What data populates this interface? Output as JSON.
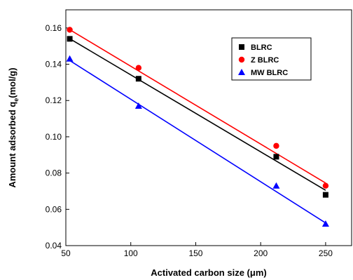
{
  "chart_data": {
    "type": "scatter",
    "title": "",
    "xlabel": "Activated carbon size (μm)",
    "ylabel_main": "Amount adsorbed q",
    "ylabel_sub": "e",
    "ylabel_unit": "(mol/g)",
    "xlim": [
      50,
      270
    ],
    "ylim": [
      0.04,
      0.17
    ],
    "x_ticks": [
      50,
      100,
      150,
      200,
      250
    ],
    "x_tick_labels": [
      "50",
      "100",
      "150",
      "200",
      "250"
    ],
    "y_ticks": [
      0.04,
      0.06,
      0.08,
      0.1,
      0.12,
      0.14,
      0.16
    ],
    "y_tick_labels": [
      "0.04",
      "0.06",
      "0.08",
      "0.10",
      "0.12",
      "0.14",
      "0.16"
    ],
    "grid": false,
    "legend_position": "top-right",
    "series": [
      {
        "name": "BLRC",
        "marker": "square",
        "color": "#000000",
        "points": [
          [
            53,
            0.154
          ],
          [
            106,
            0.132
          ],
          [
            212,
            0.089
          ],
          [
            250,
            0.068
          ]
        ],
        "fit": [
          [
            52,
            0.1545
          ],
          [
            250,
            0.0705
          ]
        ]
      },
      {
        "name": "Z BLRC",
        "marker": "circle",
        "color": "#ff0000",
        "points": [
          [
            53,
            0.159
          ],
          [
            106,
            0.138
          ],
          [
            212,
            0.095
          ],
          [
            250,
            0.073
          ]
        ],
        "fit": [
          [
            52,
            0.1595
          ],
          [
            250,
            0.0745
          ]
        ]
      },
      {
        "name": "MW BLRC",
        "marker": "triangle",
        "color": "#0000ff",
        "points": [
          [
            53,
            0.143
          ],
          [
            106,
            0.117
          ],
          [
            212,
            0.073
          ],
          [
            250,
            0.052
          ]
        ],
        "fit": [
          [
            52,
            0.1425
          ],
          [
            250,
            0.0525
          ]
        ]
      }
    ]
  }
}
